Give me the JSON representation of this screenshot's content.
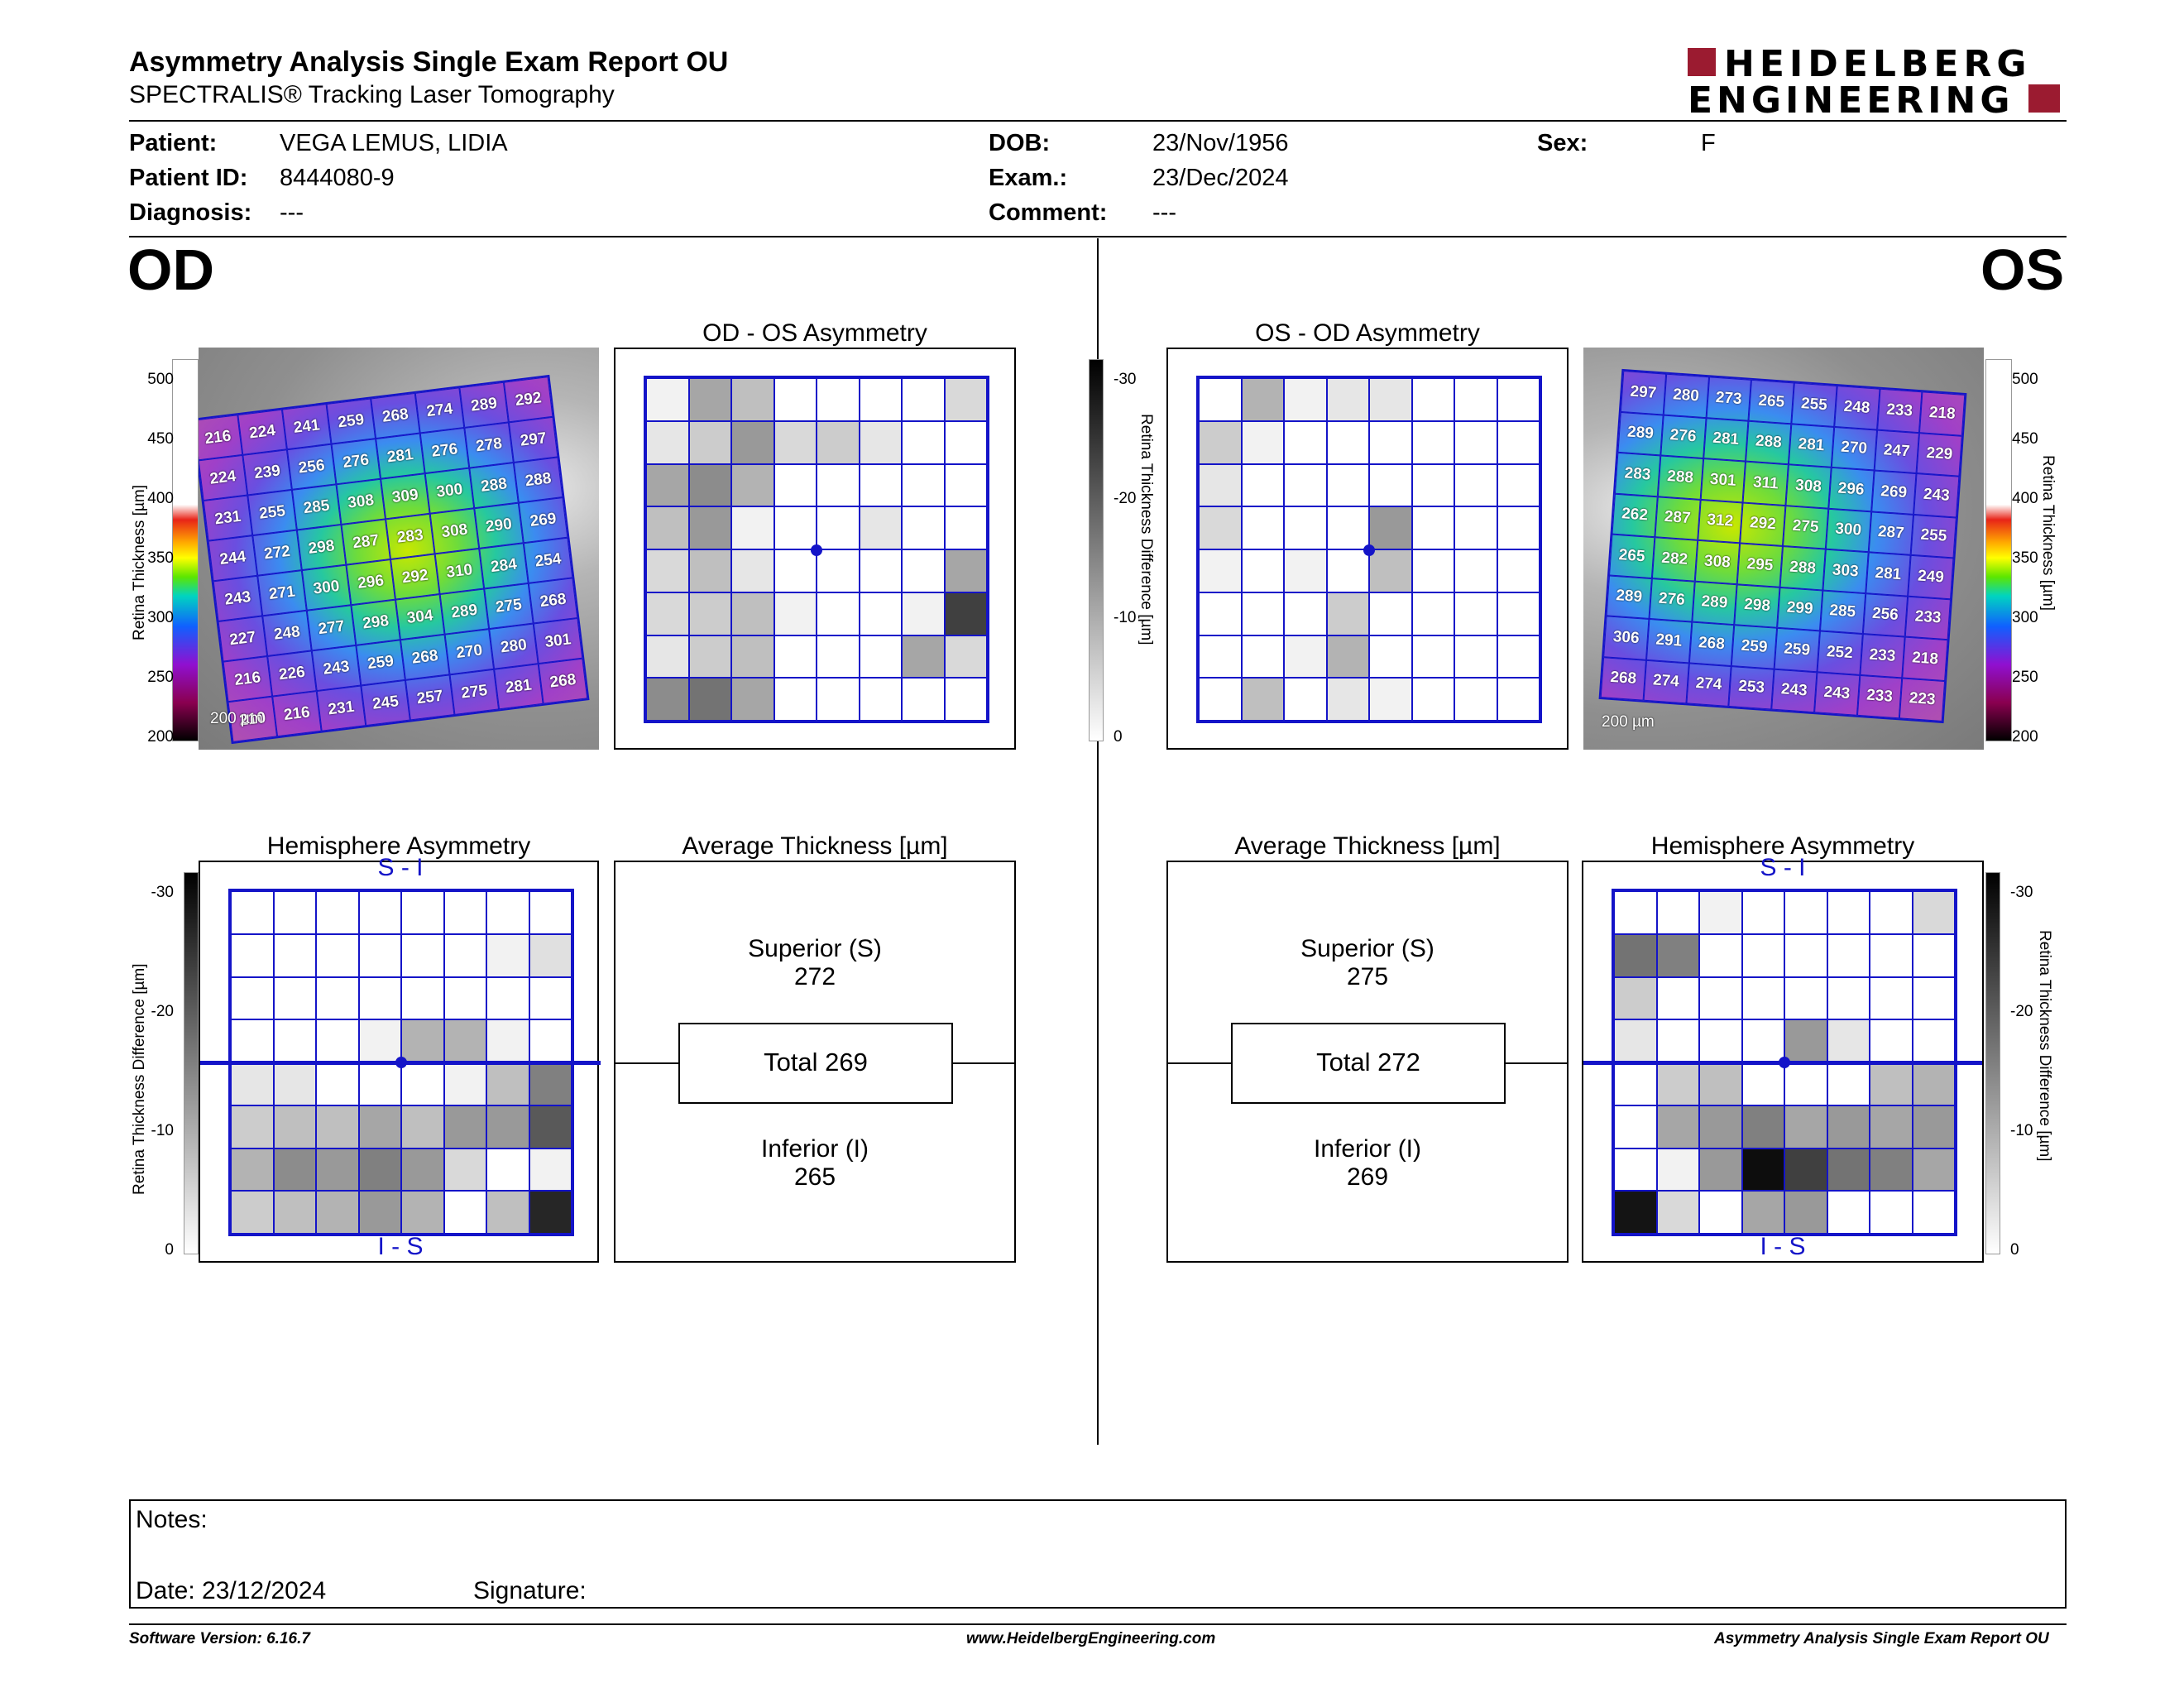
{
  "header": {
    "title": "Asymmetry Analysis Single Exam Report OU",
    "subtitle": "SPECTRALIS® Tracking Laser Tomography",
    "logo_line1": "HEIDELBERG",
    "logo_line2": "ENGINEERING"
  },
  "patient": {
    "patient_label": "Patient:",
    "patient_value": "VEGA LEMUS, LIDIA",
    "id_label": "Patient ID:",
    "id_value": "8444080-9",
    "diagnosis_label": "Diagnosis:",
    "diagnosis_value": "---",
    "dob_label": "DOB:",
    "dob_value": "23/Nov/1956",
    "exam_label": "Exam.:",
    "exam_value": "23/Dec/2024",
    "comment_label": "Comment:",
    "comment_value": "---",
    "sex_label": "Sex:",
    "sex_value": "F"
  },
  "eyes": {
    "od": "OD",
    "os": "OS"
  },
  "thickness_scale": {
    "ticks": [
      "500",
      "450",
      "400",
      "350",
      "300",
      "250",
      "200"
    ],
    "axis_label": "Retina Thickness [µm]"
  },
  "diff_scale": {
    "ticks": [
      "-30",
      "-20",
      "-10",
      "0"
    ],
    "axis_label": "Retina Thickness Difference [µm]"
  },
  "scale_bar": "200 µm",
  "od_map": [
    [
      "216",
      "224",
      "241",
      "259",
      "268",
      "274",
      "289",
      "292"
    ],
    [
      "224",
      "239",
      "256",
      "276",
      "281",
      "276",
      "278",
      "297"
    ],
    [
      "231",
      "255",
      "285",
      "308",
      "309",
      "300",
      "288",
      "288"
    ],
    [
      "244",
      "272",
      "298",
      "287",
      "283",
      "308",
      "290",
      "269"
    ],
    [
      "243",
      "271",
      "300",
      "296",
      "292",
      "310",
      "284",
      "254"
    ],
    [
      "227",
      "248",
      "277",
      "298",
      "304",
      "289",
      "275",
      "268"
    ],
    [
      "216",
      "226",
      "243",
      "259",
      "268",
      "270",
      "280",
      "301"
    ],
    [
      "210",
      "216",
      "231",
      "245",
      "257",
      "275",
      "281",
      "268"
    ]
  ],
  "os_map": [
    [
      "297",
      "280",
      "273",
      "265",
      "255",
      "248",
      "233",
      "218"
    ],
    [
      "289",
      "276",
      "281",
      "288",
      "281",
      "270",
      "247",
      "229"
    ],
    [
      "283",
      "288",
      "301",
      "311",
      "308",
      "296",
      "269",
      "243"
    ],
    [
      "262",
      "287",
      "312",
      "292",
      "275",
      "300",
      "287",
      "255"
    ],
    [
      "265",
      "282",
      "308",
      "295",
      "288",
      "303",
      "281",
      "249"
    ],
    [
      "289",
      "276",
      "289",
      "298",
      "299",
      "285",
      "256",
      "233"
    ],
    [
      "306",
      "291",
      "268",
      "259",
      "259",
      "252",
      "233",
      "218"
    ],
    [
      "268",
      "274",
      "274",
      "253",
      "243",
      "243",
      "233",
      "223"
    ]
  ],
  "od_os_asymmetry": {
    "title": "OD - OS Asymmetry",
    "grid": [
      [
        0.05,
        0.35,
        0.25,
        0,
        0,
        0,
        0,
        0.15
      ],
      [
        0.1,
        0.2,
        0.4,
        0.15,
        0.2,
        0.1,
        0,
        0
      ],
      [
        0.35,
        0.45,
        0.3,
        0,
        0,
        0,
        0,
        0
      ],
      [
        0.25,
        0.4,
        0.05,
        0,
        0,
        0.1,
        0,
        0
      ],
      [
        0.15,
        0.25,
        0.1,
        0,
        0,
        0,
        0,
        0.35
      ],
      [
        0.15,
        0.2,
        0.25,
        0.05,
        0,
        0,
        0.05,
        0.75
      ],
      [
        0.1,
        0.2,
        0.25,
        0,
        0,
        0,
        0.35,
        0.15
      ],
      [
        0.45,
        0.55,
        0.35,
        0,
        0,
        0,
        0,
        0
      ]
    ]
  },
  "os_od_asymmetry": {
    "title": "OS - OD Asymmetry",
    "grid": [
      [
        0,
        0.3,
        0.05,
        0.1,
        0.1,
        0,
        0,
        0
      ],
      [
        0.2,
        0.05,
        0,
        0,
        0,
        0,
        0,
        0
      ],
      [
        0.1,
        0,
        0,
        0,
        0,
        0,
        0,
        0
      ],
      [
        0.15,
        0,
        0,
        0,
        0.4,
        0,
        0,
        0
      ],
      [
        0.05,
        0,
        0.05,
        0,
        0.25,
        0,
        0,
        0
      ],
      [
        0,
        0,
        0,
        0.2,
        0,
        0,
        0,
        0
      ],
      [
        0,
        0,
        0.05,
        0.3,
        0,
        0,
        0,
        0
      ],
      [
        0,
        0.25,
        0,
        0.1,
        0.05,
        0,
        0,
        0
      ]
    ]
  },
  "od_hemisphere": {
    "title": "Hemisphere Asymmetry",
    "top_label": "S - I",
    "bottom_label": "I - S",
    "grid": [
      [
        0,
        0,
        0,
        0,
        0,
        0,
        0,
        0
      ],
      [
        0,
        0,
        0,
        0,
        0,
        0,
        0.05,
        0.12
      ],
      [
        0,
        0,
        0,
        0,
        0,
        0,
        0,
        0
      ],
      [
        0,
        0,
        0,
        0.05,
        0.3,
        0.3,
        0.05,
        0
      ],
      [
        0.1,
        0.1,
        0,
        0,
        0,
        0.05,
        0.25,
        0.5
      ],
      [
        0.2,
        0.25,
        0.25,
        0.35,
        0.25,
        0.4,
        0.4,
        0.65
      ],
      [
        0.3,
        0.45,
        0.4,
        0.5,
        0.4,
        0.15,
        0,
        0.05
      ],
      [
        0.2,
        0.25,
        0.3,
        0.4,
        0.3,
        0,
        0.25,
        0.85
      ]
    ]
  },
  "os_hemisphere": {
    "title": "Hemisphere Asymmetry",
    "top_label": "S - I",
    "bottom_label": "I - S",
    "grid": [
      [
        0,
        0,
        0.05,
        0,
        0,
        0,
        0,
        0.15
      ],
      [
        0.55,
        0.5,
        0,
        0,
        0,
        0,
        0,
        0
      ],
      [
        0.2,
        0,
        0,
        0,
        0,
        0,
        0,
        0
      ],
      [
        0.1,
        0,
        0,
        0,
        0.4,
        0.1,
        0,
        0
      ],
      [
        0,
        0.2,
        0.25,
        0,
        0,
        0,
        0.25,
        0.3
      ],
      [
        0,
        0.35,
        0.4,
        0.5,
        0.35,
        0.4,
        0.35,
        0.4
      ],
      [
        0,
        0.05,
        0.4,
        0.95,
        0.75,
        0.55,
        0.5,
        0.35
      ],
      [
        0.92,
        0.15,
        0,
        0.35,
        0.4,
        0,
        0,
        0
      ]
    ]
  },
  "od_average": {
    "title": "Average Thickness [µm]",
    "superior_label": "Superior (S)",
    "superior_value": "272",
    "total_label": "Total 269",
    "inferior_label": "Inferior (I)",
    "inferior_value": "265"
  },
  "os_average": {
    "title": "Average Thickness [µm]",
    "superior_label": "Superior (S)",
    "superior_value": "275",
    "total_label": "Total 272",
    "inferior_label": "Inferior (I)",
    "inferior_value": "269"
  },
  "notes": {
    "notes_label": "Notes:",
    "date_label": "Date: 23/12/2024",
    "signature_label": "Signature:"
  },
  "footer": {
    "software": "Software Version: 6.16.7",
    "website": "www.HeidelbergEngineering.com",
    "report": "Asymmetry Analysis Single Exam Report OU"
  },
  "colors": {
    "grid_blue": "#1414c8",
    "logo_red": "#9b1b30"
  }
}
